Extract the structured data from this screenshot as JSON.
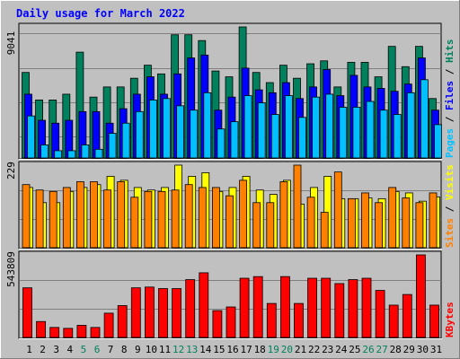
{
  "title": "Daily usage for March 2022",
  "colors": {
    "background": "#c0c0c0",
    "panel": "#c0c0c0",
    "title": "#0000ff",
    "hits": "#00805c",
    "files": "#0000ff",
    "pages": "#00c0ff",
    "visits": "#ffff00",
    "sites": "#ff8000",
    "kbytes": "#ff0000",
    "weekend_label": "#00805c",
    "weekday_label": "#000000"
  },
  "labels": {
    "top_max": "9041",
    "mid_max": "229",
    "bottom_max": "543809",
    "legend_pages": "Pages",
    "legend_files": "Files",
    "legend_hits": "Hits",
    "legend_sites": "Sites",
    "legend_visits": "Visits",
    "legend_kbytes": "KBytes",
    "slash": "/"
  },
  "chart_data": [
    {
      "type": "bar",
      "title": "Daily usage for March 2022",
      "ylim": [
        0,
        9041
      ],
      "categories": [
        "1",
        "2",
        "3",
        "4",
        "5",
        "6",
        "7",
        "8",
        "9",
        "10",
        "11",
        "12",
        "13",
        "14",
        "15",
        "16",
        "17",
        "18",
        "19",
        "20",
        "21",
        "22",
        "23",
        "24",
        "25",
        "26",
        "27",
        "28",
        "29",
        "30",
        "31"
      ],
      "weekend_days": [
        "5",
        "6",
        "12",
        "13",
        "19",
        "20",
        "26",
        "27"
      ],
      "series": [
        {
          "name": "Hits",
          "values": [
            5900,
            4000,
            4000,
            4400,
            7300,
            4200,
            4900,
            4900,
            5500,
            6400,
            5800,
            8500,
            8500,
            8100,
            6000,
            5600,
            9041,
            5900,
            5200,
            6400,
            5500,
            6500,
            6700,
            4900,
            6600,
            6600,
            5600,
            7700,
            6300,
            7700,
            4100
          ]
        },
        {
          "name": "Files",
          "values": [
            4400,
            2600,
            2400,
            2600,
            3200,
            3200,
            2400,
            3400,
            4400,
            5600,
            4400,
            5800,
            6900,
            7100,
            3300,
            4200,
            6200,
            4700,
            4500,
            5200,
            4100,
            4900,
            6100,
            4300,
            5700,
            4900,
            4800,
            4600,
            5100,
            6900,
            3300
          ]
        },
        {
          "name": "Pages",
          "values": [
            2900,
            900,
            500,
            500,
            900,
            600,
            1700,
            2400,
            3200,
            4000,
            4100,
            3600,
            3300,
            4500,
            2000,
            2500,
            4300,
            3800,
            3000,
            4300,
            2800,
            4200,
            4400,
            3500,
            3500,
            3900,
            3300,
            3000,
            4500,
            5400,
            2300
          ]
        }
      ]
    },
    {
      "type": "bar",
      "ylim": [
        0,
        229
      ],
      "categories": [
        "1",
        "2",
        "3",
        "4",
        "5",
        "6",
        "7",
        "8",
        "9",
        "10",
        "11",
        "12",
        "13",
        "14",
        "15",
        "16",
        "17",
        "18",
        "19",
        "20",
        "21",
        "22",
        "23",
        "24",
        "25",
        "26",
        "27",
        "28",
        "29",
        "30",
        "31"
      ],
      "series": [
        {
          "name": "Visits",
          "values": [
            167,
            125,
            125,
            156,
            167,
            175,
            198,
            187,
            167,
            160,
            167,
            229,
            198,
            208,
            156,
            167,
            198,
            160,
            148,
            187,
            121,
            167,
            198,
            136,
            136,
            138,
            136,
            156,
            152,
            129,
            141
          ]
        },
        {
          "name": "Sites",
          "values": [
            175,
            160,
            156,
            167,
            183,
            183,
            160,
            183,
            140,
            156,
            156,
            160,
            175,
            167,
            167,
            144,
            187,
            125,
            125,
            183,
            229,
            140,
            98,
            210,
            136,
            152,
            125,
            167,
            138,
            125,
            152
          ]
        }
      ]
    },
    {
      "type": "bar",
      "ylim": [
        0,
        543809
      ],
      "categories": [
        "1",
        "2",
        "3",
        "4",
        "5",
        "6",
        "7",
        "8",
        "9",
        "10",
        "11",
        "12",
        "13",
        "14",
        "15",
        "16",
        "17",
        "18",
        "19",
        "20",
        "21",
        "22",
        "23",
        "24",
        "25",
        "26",
        "27",
        "28",
        "29",
        "30",
        "31"
      ],
      "series": [
        {
          "name": "KBytes",
          "values": [
            327000,
            105000,
            66000,
            60000,
            80000,
            66000,
            160000,
            210000,
            327000,
            332000,
            322000,
            322000,
            381000,
            426000,
            177000,
            201000,
            390000,
            401000,
            224000,
            401000,
            224000,
            390000,
            390000,
            355000,
            381000,
            390000,
            310000,
            213000,
            283000,
            543809,
            213000
          ]
        }
      ]
    }
  ]
}
